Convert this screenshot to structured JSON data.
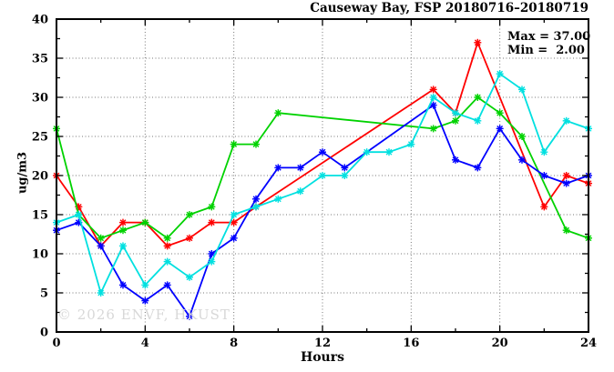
{
  "watermark": "© 2026 ENVF, HKUST",
  "chart_data": {
    "type": "line",
    "title": "Causeway Bay, FSP 20180716–20180719",
    "xlabel": "Hours",
    "ylabel": "ug/m3",
    "xlim": [
      0,
      24
    ],
    "ylim": [
      0,
      40
    ],
    "x_major_ticks": [
      0,
      4,
      8,
      12,
      16,
      20,
      24
    ],
    "y_major_ticks": [
      0,
      5,
      10,
      15,
      20,
      25,
      30,
      35,
      40
    ],
    "x_minor_step": 2,
    "y_minor_step": 2.5,
    "grid": "dotted",
    "legend_position": "none",
    "annotations": {
      "max_label": "Max = 37.00",
      "min_label": "Min =  2.00"
    },
    "hours": [
      0,
      1,
      2,
      3,
      4,
      5,
      6,
      7,
      8,
      9,
      10,
      11,
      12,
      13,
      14,
      15,
      16,
      17,
      18,
      19,
      20,
      21,
      22,
      23,
      24
    ],
    "series": [
      {
        "name": "series-red",
        "color": "#ff0000",
        "values": [
          20,
          16,
          11,
          14,
          14,
          11,
          12,
          14,
          14,
          16,
          null,
          null,
          null,
          null,
          null,
          null,
          null,
          31,
          28,
          37,
          null,
          null,
          16,
          20,
          19
        ]
      },
      {
        "name": "series-green",
        "color": "#00d200",
        "values": [
          26,
          15,
          12,
          13,
          14,
          12,
          15,
          16,
          24,
          24,
          28,
          null,
          null,
          null,
          null,
          null,
          null,
          26,
          27,
          30,
          28,
          25,
          null,
          13,
          12
        ]
      },
      {
        "name": "series-blue",
        "color": "#0000ff",
        "values": [
          13,
          14,
          11,
          6,
          4,
          6,
          2,
          10,
          12,
          17,
          21,
          21,
          23,
          21,
          null,
          null,
          null,
          29,
          22,
          21,
          26,
          22,
          20,
          19,
          20
        ]
      },
      {
        "name": "series-cyan",
        "color": "#00e0e0",
        "values": [
          14,
          15,
          5,
          11,
          6,
          9,
          7,
          9,
          15,
          16,
          17,
          18,
          20,
          20,
          23,
          23,
          24,
          30,
          28,
          27,
          33,
          31,
          23,
          27,
          26
        ]
      }
    ],
    "plot_colors": {
      "border": "#000000",
      "grid": "#777777",
      "background": "#ffffff"
    }
  }
}
